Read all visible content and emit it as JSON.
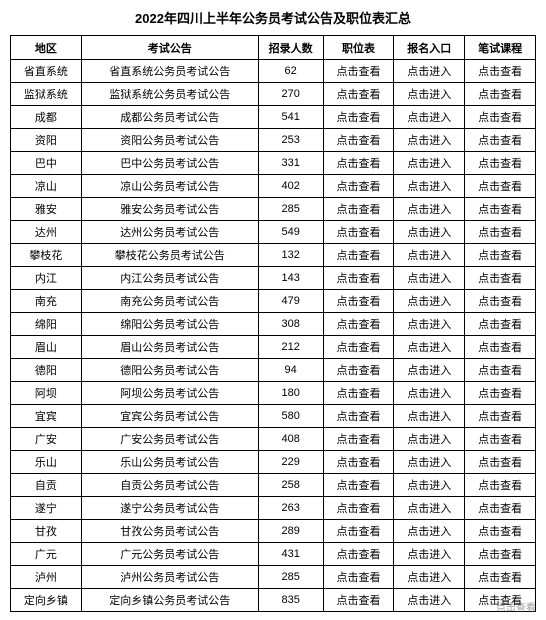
{
  "title": "2022年四川上半年公务员考试公告及职位表汇总",
  "columns": {
    "region": "地区",
    "notice": "考试公告",
    "count": "招录人数",
    "position": "职位表",
    "entry": "报名入口",
    "course": "笔试课程"
  },
  "labels": {
    "positionView": "点击查看",
    "entryView": "点击进入",
    "courseView": "点击查看"
  },
  "rows": [
    {
      "region": "省直系统",
      "notice": "省直系统公务员考试公告",
      "count": "62"
    },
    {
      "region": "监狱系统",
      "notice": "监狱系统公务员考试公告",
      "count": "270"
    },
    {
      "region": "成都",
      "notice": "成都公务员考试公告",
      "count": "541"
    },
    {
      "region": "资阳",
      "notice": "资阳公务员考试公告",
      "count": "253"
    },
    {
      "region": "巴中",
      "notice": "巴中公务员考试公告",
      "count": "331"
    },
    {
      "region": "凉山",
      "notice": "凉山公务员考试公告",
      "count": "402"
    },
    {
      "region": "雅安",
      "notice": "雅安公务员考试公告",
      "count": "285"
    },
    {
      "region": "达州",
      "notice": "达州公务员考试公告",
      "count": "549"
    },
    {
      "region": "攀枝花",
      "notice": "攀枝花公务员考试公告",
      "count": "132"
    },
    {
      "region": "内江",
      "notice": "内江公务员考试公告",
      "count": "143"
    },
    {
      "region": "南充",
      "notice": "南充公务员考试公告",
      "count": "479"
    },
    {
      "region": "绵阳",
      "notice": "绵阳公务员考试公告",
      "count": "308"
    },
    {
      "region": "眉山",
      "notice": "眉山公务员考试公告",
      "count": "212"
    },
    {
      "region": "德阳",
      "notice": "德阳公务员考试公告",
      "count": "94"
    },
    {
      "region": "阿坝",
      "notice": "阿坝公务员考试公告",
      "count": "180"
    },
    {
      "region": "宜宾",
      "notice": "宜宾公务员考试公告",
      "count": "580"
    },
    {
      "region": "广安",
      "notice": "广安公务员考试公告",
      "count": "408"
    },
    {
      "region": "乐山",
      "notice": "乐山公务员考试公告",
      "count": "229"
    },
    {
      "region": "自贡",
      "notice": "自贡公务员考试公告",
      "count": "258"
    },
    {
      "region": "遂宁",
      "notice": "遂宁公务员考试公告",
      "count": "263"
    },
    {
      "region": "甘孜",
      "notice": "甘孜公务员考试公告",
      "count": "289"
    },
    {
      "region": "广元",
      "notice": "广元公务员考试公告",
      "count": "431"
    },
    {
      "region": "泸州",
      "notice": "泸州公务员考试公告",
      "count": "285"
    },
    {
      "region": "定向乡镇",
      "notice": "定向乡镇公务员考试公告",
      "count": "835"
    }
  ],
  "watermark": "点击查看"
}
